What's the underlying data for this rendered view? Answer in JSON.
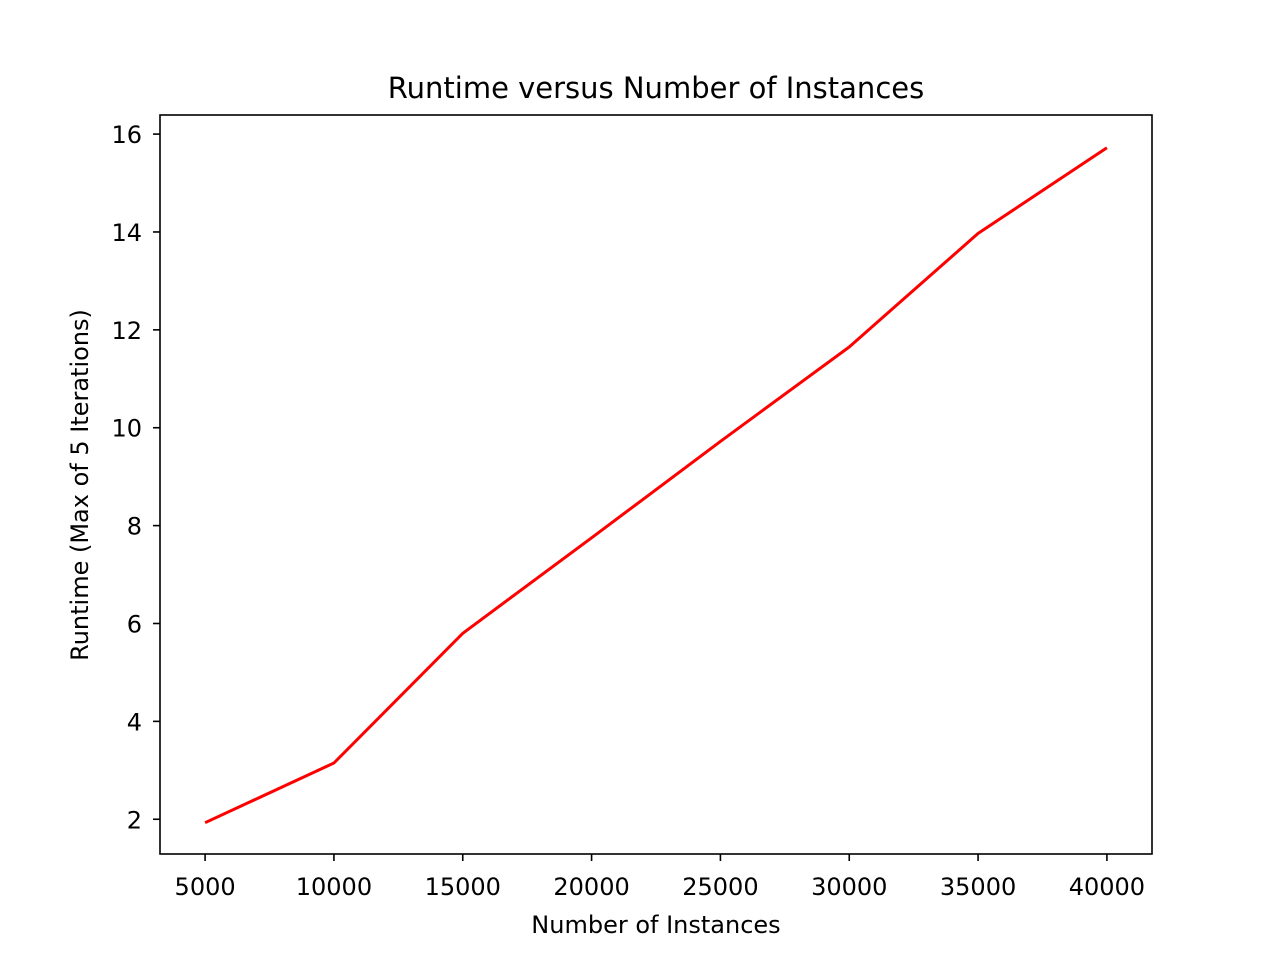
{
  "chart_data": {
    "type": "line",
    "title": "Runtime versus Number of Instances",
    "xlabel": "Number of Instances",
    "ylabel": "Runtime (Max of 5 Iterations)",
    "xlim": [
      3250,
      41750
    ],
    "ylim": [
      1.29,
      16.39
    ],
    "xticks": [
      5000,
      10000,
      15000,
      20000,
      25000,
      30000,
      35000,
      40000
    ],
    "yticks": [
      2,
      4,
      6,
      8,
      10,
      12,
      14,
      16
    ],
    "grid": false,
    "series": [
      {
        "color": "#ff0000",
        "x": [
          5000,
          10000,
          15000,
          20000,
          25000,
          30000,
          35000,
          40000
        ],
        "y": [
          1.93,
          3.15,
          5.8,
          7.75,
          9.72,
          11.65,
          13.97,
          15.72
        ]
      }
    ]
  }
}
